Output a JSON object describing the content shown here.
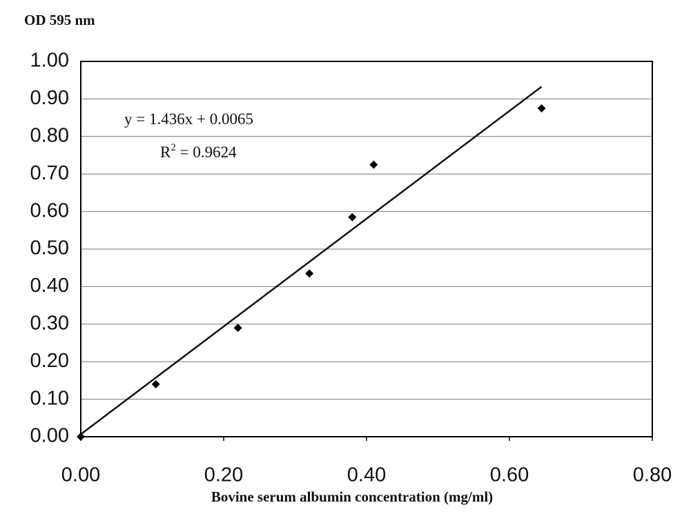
{
  "chart_data": {
    "type": "scatter",
    "y_label": "OD 595 nm",
    "x_label": "Bovine serum albumin concentration (mg/ml)",
    "x": [
      0,
      0.105,
      0.22,
      0.32,
      0.38,
      0.41,
      0.645
    ],
    "values": [
      0,
      0.14,
      0.29,
      0.435,
      0.585,
      0.725,
      0.875
    ],
    "color": "#000000",
    "xlim": [
      0,
      0.8
    ],
    "ylim": [
      0,
      1
    ],
    "xticks": [
      {
        "value": 0,
        "label": "0.00"
      },
      {
        "value": 0.2,
        "label": "0.20"
      },
      {
        "value": 0.4,
        "label": "0.40"
      },
      {
        "value": 0.6,
        "label": "0.60"
      },
      {
        "value": 0.8,
        "label": "0.80"
      }
    ],
    "yticks": [
      {
        "value": 0,
        "label": "0.00"
      },
      {
        "value": 0.1,
        "label": "0.10"
      },
      {
        "value": 0.2,
        "label": "0.20"
      },
      {
        "value": 0.3,
        "label": "0.30"
      },
      {
        "value": 0.4,
        "label": "0.40"
      },
      {
        "value": 0.5,
        "label": "0.50"
      },
      {
        "value": 0.6,
        "label": "0.60"
      },
      {
        "value": 0.7,
        "label": "0.70"
      },
      {
        "value": 0.8,
        "label": "0.80"
      },
      {
        "value": 0.9,
        "label": "0.90"
      },
      {
        "value": 1,
        "label": "1.00"
      }
    ],
    "grid": true,
    "trendline": {
      "slope": 1.436,
      "intercept": 0.0065,
      "equation": "y = 1.436x + 0.0065",
      "r2_base": "R",
      "r2_sup": "2",
      "r2_rest": " = 0.9624"
    }
  }
}
